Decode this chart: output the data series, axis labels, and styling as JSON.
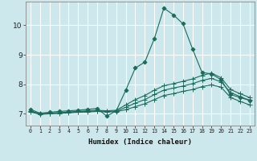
{
  "xlabel": "Humidex (Indice chaleur)",
  "bg_color": "#cce8ec",
  "grid_color": "#ffffff",
  "line_color": "#1a6b5a",
  "xlim": [
    -0.5,
    23.5
  ],
  "ylim": [
    6.6,
    10.8
  ],
  "yticks": [
    7,
    8,
    9,
    10
  ],
  "xticks": [
    0,
    1,
    2,
    3,
    4,
    5,
    6,
    7,
    8,
    9,
    10,
    11,
    12,
    13,
    14,
    15,
    16,
    17,
    18,
    19,
    20,
    21,
    22,
    23
  ],
  "lines": [
    {
      "x": [
        0,
        1,
        2,
        3,
        4,
        5,
        6,
        7,
        8,
        9,
        10,
        11,
        12,
        13,
        14,
        15,
        16,
        17,
        18,
        19,
        20,
        21,
        22,
        23
      ],
      "y": [
        7.15,
        7.02,
        7.05,
        7.08,
        7.1,
        7.12,
        7.15,
        7.18,
        6.92,
        7.1,
        7.8,
        8.55,
        8.75,
        9.55,
        10.58,
        10.35,
        10.05,
        9.2,
        8.4,
        8.35,
        8.15,
        7.65,
        7.55,
        7.45
      ],
      "marker": "D",
      "ms": 2.5
    },
    {
      "x": [
        0,
        1,
        2,
        3,
        4,
        5,
        6,
        7,
        8,
        9,
        10,
        11,
        12,
        13,
        14,
        15,
        16,
        17,
        18,
        19,
        20,
        21,
        22,
        23
      ],
      "y": [
        7.1,
        7.0,
        7.02,
        7.04,
        7.06,
        7.08,
        7.1,
        7.12,
        7.1,
        7.12,
        7.3,
        7.48,
        7.62,
        7.8,
        7.95,
        8.02,
        8.1,
        8.18,
        8.3,
        8.38,
        8.22,
        7.82,
        7.68,
        7.55
      ],
      "marker": "+",
      "ms": 4
    },
    {
      "x": [
        0,
        1,
        2,
        3,
        4,
        5,
        6,
        7,
        8,
        9,
        10,
        11,
        12,
        13,
        14,
        15,
        16,
        17,
        18,
        19,
        20,
        21,
        22,
        23
      ],
      "y": [
        7.08,
        6.99,
        7.01,
        7.03,
        7.05,
        7.07,
        7.08,
        7.1,
        7.08,
        7.09,
        7.22,
        7.36,
        7.48,
        7.65,
        7.8,
        7.87,
        7.94,
        8.02,
        8.13,
        8.2,
        8.08,
        7.72,
        7.58,
        7.46
      ],
      "marker": "+",
      "ms": 4
    },
    {
      "x": [
        0,
        1,
        2,
        3,
        4,
        5,
        6,
        7,
        8,
        9,
        10,
        11,
        12,
        13,
        14,
        15,
        16,
        17,
        18,
        19,
        20,
        21,
        22,
        23
      ],
      "y": [
        7.06,
        6.98,
        7.0,
        7.01,
        7.03,
        7.05,
        7.06,
        7.08,
        7.06,
        7.07,
        7.14,
        7.24,
        7.34,
        7.48,
        7.62,
        7.68,
        7.76,
        7.82,
        7.92,
        7.98,
        7.9,
        7.55,
        7.42,
        7.3
      ],
      "marker": "+",
      "ms": 4
    }
  ]
}
